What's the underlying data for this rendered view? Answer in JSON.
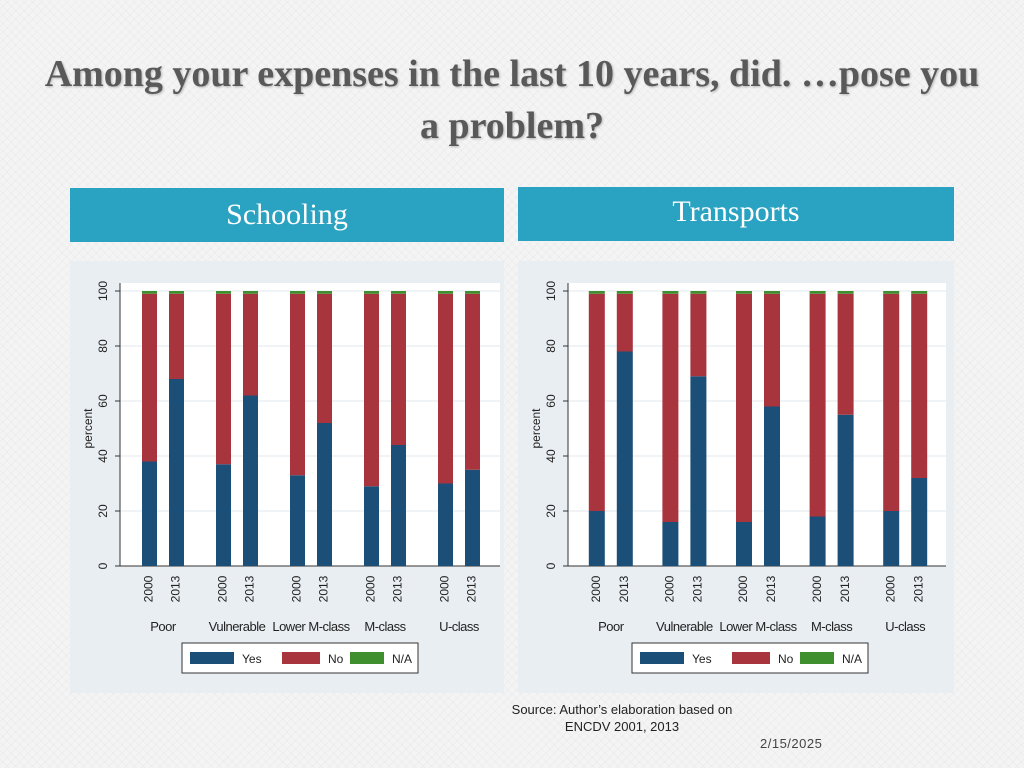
{
  "slide": {
    "title": "Among your expenses in the last 10 years, did. …pose you a problem?",
    "source": "Source: Author’s elaboration based on ENCDV 2001, 2013",
    "date": "2/15/2025"
  },
  "colors": {
    "yes": "#1b4f78",
    "no": "#a8343e",
    "na": "#3f8f2f",
    "band": "#2aa3c2"
  },
  "chart_data": [
    {
      "type": "bar",
      "stacked": true,
      "title": "Schooling",
      "ylabel": "percent",
      "ylim": [
        0,
        100
      ],
      "yticks": [
        0,
        20,
        40,
        60,
        80,
        100
      ],
      "groups": [
        "Poor",
        "Vulnerable",
        "Lower M-class",
        "M-class",
        "U-class"
      ],
      "years": [
        "2000",
        "2013"
      ],
      "legend": [
        "Yes",
        "No",
        "N/A"
      ],
      "series": [
        {
          "name": "Yes",
          "values": [
            [
              38,
              68
            ],
            [
              37,
              62
            ],
            [
              33,
              52
            ],
            [
              29,
              44
            ],
            [
              30,
              35
            ]
          ]
        },
        {
          "name": "No",
          "values": [
            [
              61,
              31
            ],
            [
              62,
              37
            ],
            [
              66,
              47
            ],
            [
              70,
              55
            ],
            [
              69,
              64
            ]
          ]
        },
        {
          "name": "N/A",
          "values": [
            [
              1,
              1
            ],
            [
              1,
              1
            ],
            [
              1,
              1
            ],
            [
              1,
              1
            ],
            [
              1,
              1
            ]
          ]
        }
      ]
    },
    {
      "type": "bar",
      "stacked": true,
      "title": "Transports",
      "ylabel": "percent",
      "ylim": [
        0,
        100
      ],
      "yticks": [
        0,
        20,
        40,
        60,
        80,
        100
      ],
      "groups": [
        "Poor",
        "Vulnerable",
        "Lower M-class",
        "M-class",
        "U-class"
      ],
      "years": [
        "2000",
        "2013"
      ],
      "legend": [
        "Yes",
        "No",
        "N/A"
      ],
      "series": [
        {
          "name": "Yes",
          "values": [
            [
              20,
              78
            ],
            [
              16,
              69
            ],
            [
              16,
              58
            ],
            [
              18,
              55
            ],
            [
              20,
              32
            ]
          ]
        },
        {
          "name": "No",
          "values": [
            [
              79,
              21
            ],
            [
              83,
              30
            ],
            [
              83,
              41
            ],
            [
              81,
              44
            ],
            [
              79,
              67
            ]
          ]
        },
        {
          "name": "N/A",
          "values": [
            [
              1,
              1
            ],
            [
              1,
              1
            ],
            [
              1,
              1
            ],
            [
              1,
              1
            ],
            [
              1,
              1
            ]
          ]
        }
      ]
    }
  ]
}
